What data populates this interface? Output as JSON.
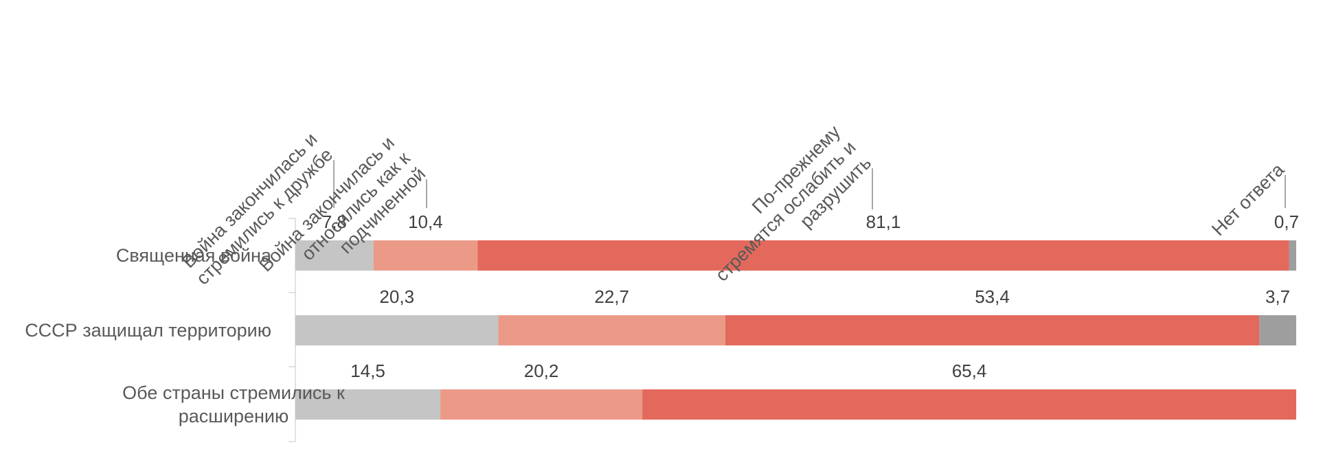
{
  "chart_data": {
    "type": "bar",
    "orientation": "horizontal",
    "stacked": "100%",
    "legend_placement": "top, rotated labels with leader lines",
    "categories": [
      "Священная война",
      "СССР защищал территорию",
      "Обе страны стремились к расширению"
    ],
    "series": [
      {
        "name": "Война закончилась и стремились к дружбе",
        "name_lines": [
          "Война закончилась и",
          "стремились к дружбе"
        ],
        "color": "#c4c5c4",
        "values": [
          7.8,
          20.3,
          14.5
        ],
        "labels": [
          "7,8",
          "20,3",
          "14,5"
        ]
      },
      {
        "name": "Война закончилась и относились как к подчиненной",
        "name_lines": [
          "Война закончилась и",
          "относились как к",
          "подчиненной"
        ],
        "color": "#ec9a88",
        "values": [
          10.4,
          22.7,
          20.2
        ],
        "labels": [
          "10,4",
          "22,7",
          "20,2"
        ]
      },
      {
        "name": "По-прежнему стремятся ослабить и разрушить",
        "name_lines": [
          "По-прежнему",
          "стремятся ослабить и",
          "разрушить"
        ],
        "color": "#e3695c",
        "values": [
          81.1,
          53.4,
          65.4
        ],
        "labels": [
          "81,1",
          "53,4",
          "65,4"
        ]
      },
      {
        "name": "Нет ответа",
        "name_lines": [
          "Нет ответа"
        ],
        "color": "#9e9e9e",
        "values": [
          0.7,
          3.7,
          0
        ],
        "labels": [
          "0,7",
          "3,7",
          ""
        ]
      }
    ],
    "category_label_lines": [
      [
        "Священная война"
      ],
      [
        "СССР защищал территорию"
      ],
      [
        "Обе страны стремились к",
        "расширению"
      ]
    ],
    "xlim": [
      0,
      100
    ],
    "grid": false
  }
}
